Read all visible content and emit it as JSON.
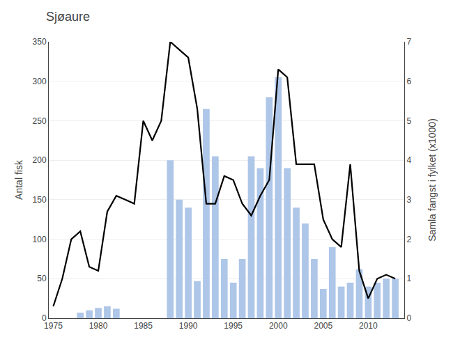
{
  "chart_data": {
    "type": "bar",
    "title": "Sjøaure",
    "ylabel": "Antal fisk",
    "y2label": "Samla fangst i fylket (x1000)",
    "xlim": [
      1974.5,
      2014
    ],
    "xticks": [
      1975,
      1980,
      1985,
      1990,
      1995,
      2000,
      2005,
      2010
    ],
    "ylim": [
      0,
      350
    ],
    "yticks": [
      0,
      50,
      100,
      150,
      200,
      250,
      300,
      350
    ],
    "y2lim": [
      0,
      7
    ],
    "y2ticks": [
      0,
      1,
      2,
      3,
      4,
      5,
      6,
      7
    ],
    "grid": true,
    "series": [
      {
        "type": "bar",
        "color": "#aec6e8",
        "x": [
          1978,
          1979,
          1980,
          1981,
          1982,
          1988,
          1989,
          1990,
          1991,
          1992,
          1993,
          1994,
          1995,
          1996,
          1997,
          1998,
          1999,
          2000,
          2001,
          2002,
          2003,
          2004,
          2005,
          2006,
          2007,
          2008,
          2009,
          2010,
          2011,
          2012,
          2013
        ],
        "values": [
          7,
          10,
          13,
          15,
          12,
          200,
          150,
          140,
          47,
          265,
          205,
          75,
          45,
          75,
          205,
          190,
          280,
          305,
          190,
          140,
          120,
          75,
          37,
          90,
          40,
          45,
          62,
          40,
          45,
          50,
          50
        ]
      },
      {
        "type": "line",
        "color": "#000000",
        "x": [
          1975,
          1976,
          1977,
          1978,
          1979,
          1980,
          1981,
          1982,
          1983,
          1984,
          1985,
          1986,
          1987,
          1988,
          1989,
          1990,
          1991,
          1992,
          1993,
          1994,
          1995,
          1996,
          1997,
          1998,
          1999,
          2000,
          2001,
          2002,
          2003,
          2004,
          2005,
          2006,
          2007,
          2008,
          2009,
          2010,
          2011,
          2012,
          2013
        ],
        "values": [
          15,
          50,
          100,
          110,
          65,
          60,
          135,
          155,
          150,
          145,
          250,
          225,
          250,
          350,
          340,
          330,
          265,
          145,
          145,
          180,
          175,
          145,
          130,
          155,
          175,
          315,
          305,
          195,
          195,
          195,
          125,
          100,
          90,
          195,
          60,
          25,
          50,
          55,
          50
        ]
      }
    ]
  }
}
